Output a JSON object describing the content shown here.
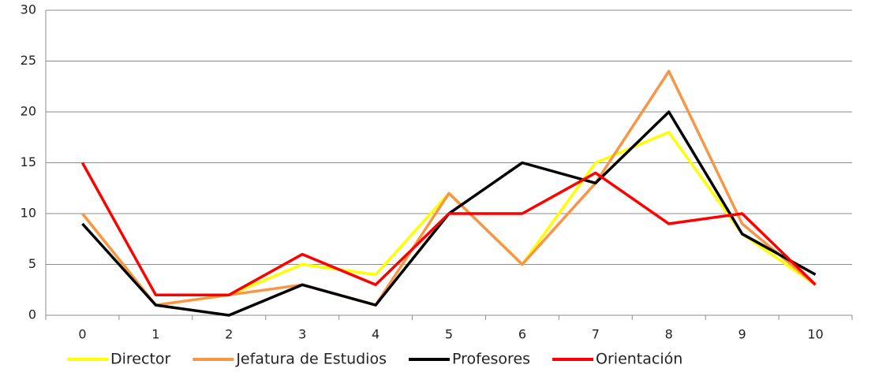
{
  "chart_data": {
    "type": "line",
    "categories": [
      "0",
      "1",
      "2",
      "3",
      "4",
      "5",
      "6",
      "7",
      "8",
      "9",
      "10"
    ],
    "series": [
      {
        "name": "Director",
        "color": "#ffff00",
        "values": [
          10,
          1,
          2,
          5,
          4,
          12,
          5,
          15,
          18,
          8,
          3
        ]
      },
      {
        "name": "Jefatura de Estudios",
        "color": "#f79646",
        "values": [
          10,
          1,
          2,
          3,
          1,
          12,
          5,
          13,
          24,
          9,
          3
        ]
      },
      {
        "name": "Profesores",
        "color": "#000000",
        "values": [
          9,
          1,
          0,
          3,
          1,
          10,
          15,
          13,
          20,
          8,
          4
        ]
      },
      {
        "name": "Orientación",
        "color": "#ff0000",
        "values": [
          15,
          2,
          2,
          6,
          3,
          10,
          10,
          14,
          9,
          10,
          3
        ]
      }
    ],
    "ylim": [
      0,
      30
    ],
    "yticks": [
      0,
      5,
      10,
      15,
      20,
      25,
      30
    ],
    "grid": true,
    "legend": "bottom"
  }
}
